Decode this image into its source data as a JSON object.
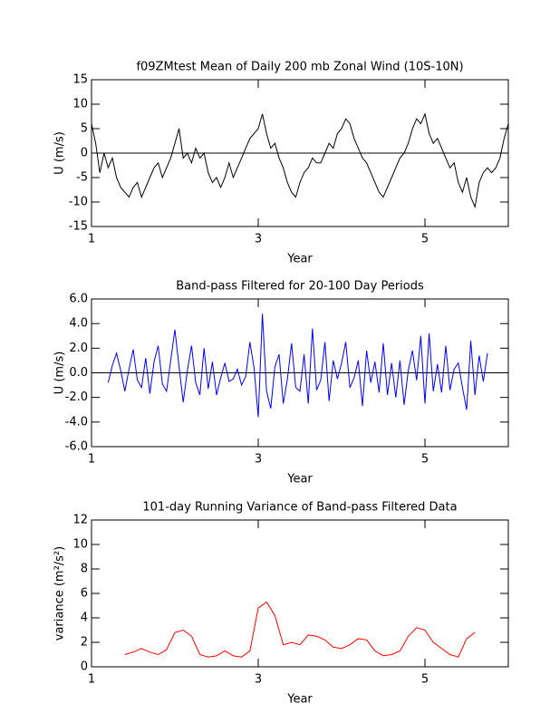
{
  "chart_data": [
    {
      "type": "line",
      "title": "f09ZMtest Mean of Daily 200 mb Zonal Wind (10S-10N)",
      "xlabel": "Year",
      "ylabel": "U (m/s)",
      "color": "#000000",
      "x": [
        1.0,
        1.05,
        1.1,
        1.15,
        1.2,
        1.25,
        1.3,
        1.35,
        1.4,
        1.45,
        1.5,
        1.55,
        1.6,
        1.65,
        1.7,
        1.75,
        1.8,
        1.85,
        1.9,
        1.95,
        2.0,
        2.05,
        2.1,
        2.15,
        2.2,
        2.25,
        2.3,
        2.35,
        2.4,
        2.45,
        2.5,
        2.55,
        2.6,
        2.65,
        2.7,
        2.75,
        2.8,
        2.85,
        2.9,
        2.95,
        3.0,
        3.05,
        3.1,
        3.15,
        3.2,
        3.25,
        3.3,
        3.35,
        3.4,
        3.45,
        3.5,
        3.55,
        3.6,
        3.65,
        3.7,
        3.75,
        3.8,
        3.85,
        3.9,
        3.95,
        4.0,
        4.05,
        4.1,
        4.15,
        4.2,
        4.25,
        4.3,
        4.35,
        4.4,
        4.45,
        4.5,
        4.55,
        4.6,
        4.65,
        4.7,
        4.75,
        4.8,
        4.85,
        4.9,
        4.95,
        5.0,
        5.05,
        5.1,
        5.15,
        5.2,
        5.25,
        5.3,
        5.35,
        5.4,
        5.45,
        5.5,
        5.55,
        5.6,
        5.65,
        5.7,
        5.75,
        5.8,
        5.85,
        5.9,
        5.95,
        6.0
      ],
      "values": [
        6,
        2,
        -4,
        0,
        -3,
        -1,
        -5,
        -7,
        -8,
        -9,
        -7,
        -6,
        -9,
        -7,
        -5,
        -3,
        -2,
        -5,
        -3,
        -1,
        2,
        5,
        -1,
        0,
        -2,
        1,
        -1,
        0,
        -4,
        -6,
        -5,
        -7,
        -5,
        -2,
        -5,
        -3,
        -1,
        1,
        3,
        4,
        5,
        8,
        4,
        1,
        2,
        -1,
        -3,
        -6,
        -8,
        -9,
        -6,
        -4,
        -3,
        -1,
        -2,
        -2,
        0,
        2,
        1,
        4,
        5,
        7,
        6,
        3,
        1,
        -1,
        -2,
        -4,
        -6,
        -8,
        -9,
        -7,
        -5,
        -3,
        -1,
        0,
        2,
        5,
        7,
        6,
        8,
        4,
        2,
        3,
        1,
        -1,
        -3,
        -2,
        -6,
        -8,
        -5,
        -9,
        -11,
        -6,
        -4,
        -3,
        -4,
        -3,
        -1,
        3,
        6
      ],
      "xlim": [
        1,
        6
      ],
      "ylim": [
        -15,
        15
      ],
      "xticks": [
        1,
        3,
        5
      ],
      "yticks": [
        -15,
        -10,
        -5,
        0,
        5,
        10,
        15
      ],
      "hline": 0
    },
    {
      "type": "line",
      "title": "Band-pass Filtered for 20-100 Day Periods",
      "xlabel": "Year",
      "ylabel": "U (m/s)",
      "color": "#0000ff",
      "x": [
        1.2,
        1.25,
        1.3,
        1.35,
        1.4,
        1.45,
        1.5,
        1.55,
        1.6,
        1.65,
        1.7,
        1.75,
        1.8,
        1.85,
        1.9,
        1.95,
        2.0,
        2.05,
        2.1,
        2.15,
        2.2,
        2.25,
        2.3,
        2.35,
        2.4,
        2.45,
        2.5,
        2.55,
        2.6,
        2.65,
        2.7,
        2.75,
        2.8,
        2.85,
        2.9,
        2.95,
        3.0,
        3.05,
        3.1,
        3.15,
        3.2,
        3.25,
        3.3,
        3.35,
        3.4,
        3.45,
        3.5,
        3.55,
        3.6,
        3.65,
        3.7,
        3.75,
        3.8,
        3.85,
        3.9,
        3.95,
        4.0,
        4.05,
        4.1,
        4.15,
        4.2,
        4.25,
        4.3,
        4.35,
        4.4,
        4.45,
        4.5,
        4.55,
        4.6,
        4.65,
        4.7,
        4.75,
        4.8,
        4.85,
        4.9,
        4.95,
        5.0,
        5.05,
        5.1,
        5.15,
        5.2,
        5.25,
        5.3,
        5.35,
        5.4,
        5.45,
        5.5,
        5.55,
        5.6,
        5.65,
        5.7,
        5.75
      ],
      "values": [
        -0.8,
        0.6,
        1.6,
        0.2,
        -1.5,
        0.3,
        1.9,
        -0.6,
        -1.2,
        1.2,
        -1.7,
        0.9,
        2.2,
        -0.9,
        -1.5,
        1.0,
        3.5,
        0.5,
        -2.4,
        0.2,
        2.2,
        -0.8,
        -1.8,
        2.0,
        -1.3,
        0.9,
        -1.8,
        -0.4,
        0.8,
        -0.7,
        -0.5,
        0.3,
        -1.0,
        -0.3,
        2.5,
        0.4,
        -3.6,
        4.8,
        -1.5,
        -2.9,
        0.5,
        1.5,
        -2.5,
        -0.5,
        2.4,
        -1.2,
        -1.5,
        1.5,
        -2.5,
        3.6,
        -1.4,
        -0.6,
        2.5,
        -2.3,
        1.0,
        -0.5,
        0.8,
        2.5,
        -1.2,
        -0.4,
        1.0,
        -2.7,
        1.8,
        -0.8,
        0.9,
        -1.6,
        2.4,
        -1.8,
        0.8,
        -2.0,
        1.0,
        -2.6,
        0.2,
        1.8,
        -0.6,
        3.0,
        -2.5,
        3.2,
        -1.5,
        0.7,
        -1.6,
        2.2,
        -1.4,
        0.3,
        0.8,
        -1.2,
        -3.0,
        2.6,
        -1.8,
        1.4,
        -0.7,
        1.6
      ],
      "xlim": [
        1,
        6
      ],
      "ylim": [
        -6,
        6
      ],
      "xticks": [
        1,
        3,
        5
      ],
      "yticks": [
        {
          "value": -6,
          "label": "-6.0"
        },
        {
          "value": -4,
          "label": "-4.0"
        },
        {
          "value": -2,
          "label": "-2.0"
        },
        {
          "value": 0,
          "label": "0.0"
        },
        {
          "value": 2,
          "label": "2.0"
        },
        {
          "value": 4,
          "label": "4.0"
        },
        {
          "value": 6,
          "label": "6.0"
        }
      ],
      "hline": 0
    },
    {
      "type": "line",
      "title": "101-day Running Variance of Band-pass Filtered Data",
      "xlabel": "Year",
      "ylabel": "variance (m²/s²)",
      "color": "#ff0000",
      "x": [
        1.4,
        1.5,
        1.6,
        1.7,
        1.8,
        1.9,
        2.0,
        2.1,
        2.2,
        2.3,
        2.4,
        2.5,
        2.6,
        2.7,
        2.8,
        2.9,
        3.0,
        3.1,
        3.2,
        3.3,
        3.4,
        3.5,
        3.6,
        3.7,
        3.8,
        3.9,
        4.0,
        4.1,
        4.2,
        4.3,
        4.4,
        4.5,
        4.6,
        4.7,
        4.8,
        4.9,
        5.0,
        5.1,
        5.2,
        5.3,
        5.4,
        5.5,
        5.6
      ],
      "values": [
        1.0,
        1.2,
        1.5,
        1.2,
        1.0,
        1.4,
        2.8,
        3.0,
        2.5,
        1.0,
        0.8,
        0.9,
        1.3,
        0.9,
        0.8,
        1.3,
        4.8,
        5.3,
        4.2,
        1.8,
        2.0,
        1.8,
        2.6,
        2.5,
        2.2,
        1.6,
        1.5,
        1.8,
        2.3,
        2.2,
        1.3,
        0.9,
        1.0,
        1.3,
        2.5,
        3.2,
        3.0,
        2.0,
        1.5,
        1.0,
        0.8,
        2.3,
        2.8
      ],
      "xlim": [
        1,
        6
      ],
      "ylim": [
        0,
        12
      ],
      "xticks": [
        1,
        3,
        5
      ],
      "yticks": [
        0,
        2,
        4,
        6,
        8,
        10,
        12
      ]
    }
  ]
}
